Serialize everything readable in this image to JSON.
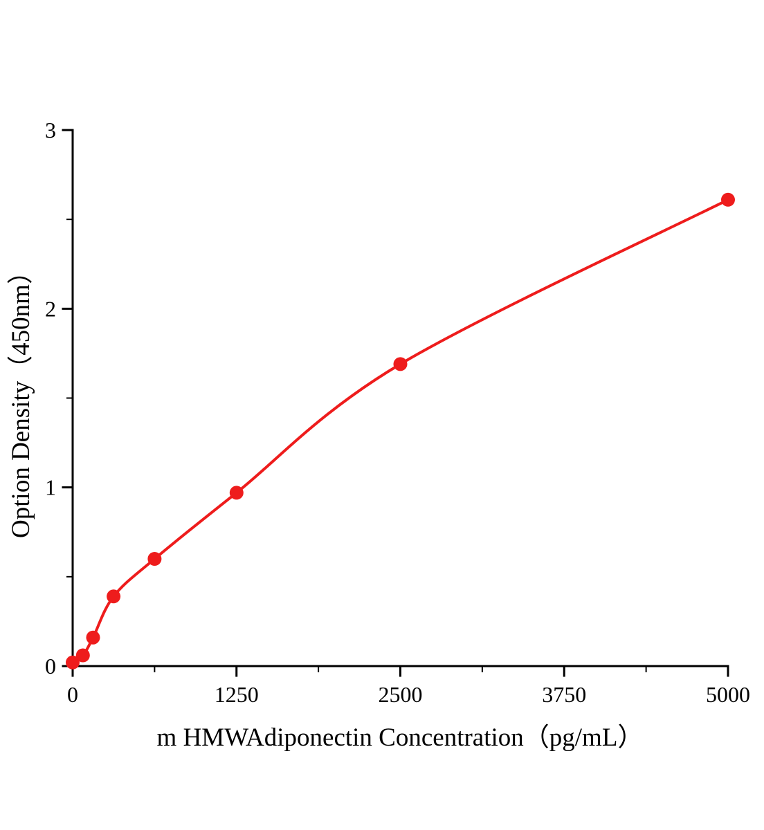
{
  "chart_data": {
    "type": "scatter",
    "title": "",
    "xlabel": "m HMWAdiponectin Concentration（pg/mL）",
    "ylabel": "Option Density（450nm）",
    "x": [
      0,
      78,
      156,
      312,
      625,
      1250,
      2500,
      5000
    ],
    "y": [
      0.02,
      0.06,
      0.16,
      0.39,
      0.6,
      0.97,
      1.69,
      2.61
    ],
    "xlim": [
      0,
      5000
    ],
    "ylim": [
      0,
      3
    ],
    "x_ticks": [
      0,
      1250,
      2500,
      3750,
      5000
    ],
    "y_ticks": [
      0,
      1,
      2,
      3
    ],
    "x_minor_ticks": [
      625,
      1875,
      3125,
      4375
    ],
    "y_minor_ticks": [
      0.5,
      1.5,
      2.5
    ],
    "line_color": "#ee1c1c",
    "point_color": "#ee1c1c",
    "point_radius": 10,
    "grid": false,
    "legend_position": "none",
    "curve_style": "smooth"
  }
}
